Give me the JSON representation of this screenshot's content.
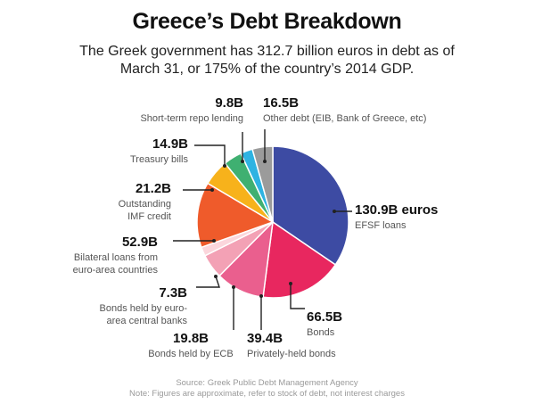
{
  "title": "Greece’s Debt Breakdown",
  "subtitle_line1": "The Greek government has 312.7 billion euros in debt as of",
  "subtitle_line2": "March 31, or 175% of the country’s 2014 GDP.",
  "footer_source": "Source: Greek Public Debt Management Agency",
  "footer_note": "Note: Figures are approximate, refer to stock of debt, not interest charges",
  "chart_data": {
    "type": "pie",
    "title": "Greece’s Debt Breakdown",
    "unit": "billion euros",
    "total": 312.7,
    "slices": [
      {
        "value_label": "130.9B euros",
        "lines": [
          "EFSF loans"
        ],
        "value": 130.9,
        "color": "#3d4ba3"
      },
      {
        "value_label": "66.5B",
        "lines": [
          "Bonds"
        ],
        "value": 66.5,
        "color": "#e8275f"
      },
      {
        "value_label": "39.4B",
        "lines": [
          "Privately-held bonds"
        ],
        "value": 39.4,
        "color": "#ea5f8e"
      },
      {
        "value_label": "19.8B",
        "lines": [
          "Bonds held by ECB"
        ],
        "value": 19.8,
        "color": "#f3a1b5"
      },
      {
        "value_label": "7.3B",
        "lines": [
          "Bonds held by euro-",
          "area central banks"
        ],
        "value": 7.3,
        "color": "#fbd6dc"
      },
      {
        "value_label": "52.9B",
        "lines": [
          "Bilateral loans from",
          "euro-area countries"
        ],
        "value": 52.9,
        "color": "#ef5b2b"
      },
      {
        "value_label": "21.2B",
        "lines": [
          "Outstanding",
          "IMF credit"
        ],
        "value": 21.2,
        "color": "#f7b21b"
      },
      {
        "value_label": "14.9B",
        "lines": [
          "Treasury bills"
        ],
        "value": 14.9,
        "color": "#3fb071"
      },
      {
        "value_label": "9.8B",
        "lines": [
          "Short-term repo lending"
        ],
        "value": 9.8,
        "color": "#2eb3e2"
      },
      {
        "value_label": "16.5B",
        "lines": [
          "Other debt (EIB, Bank of Greece, etc)"
        ],
        "value": 16.5,
        "color": "#9b9b9b"
      }
    ]
  }
}
